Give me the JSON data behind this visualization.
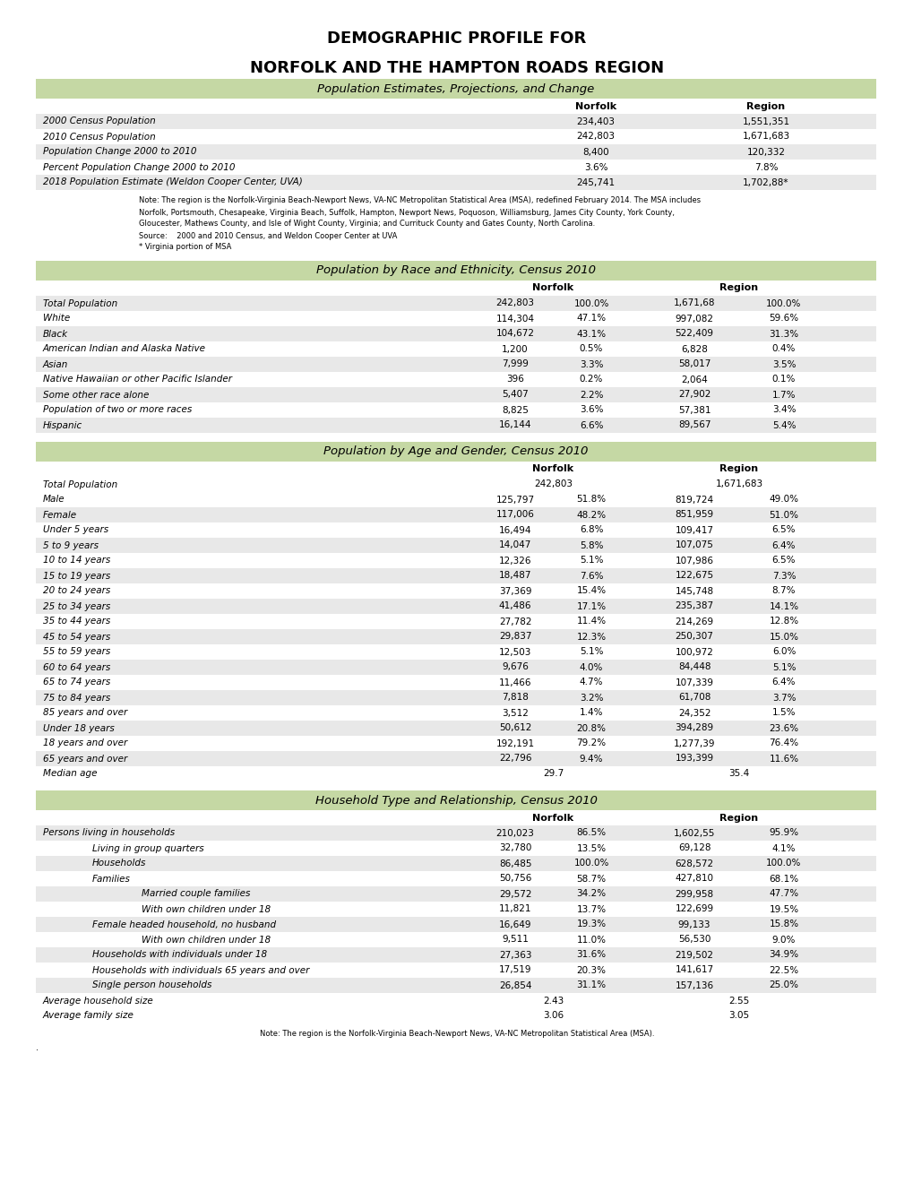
{
  "title_line1": "DEMOGRAPHIC PROFILE FOR",
  "title_line2": "NORFOLK AND THE HAMPTON ROADS REGION",
  "header_color": "#c5d8a4",
  "alt_row_color": "#e8e8e8",
  "white_row_color": "#ffffff",
  "bg_color": "#ffffff",
  "section1_title": "Population Estimates, Projections, and Change",
  "section1_rows": [
    [
      "2000 Census Population",
      "234,403",
      "1,551,351"
    ],
    [
      "2010 Census Population",
      "242,803",
      "1,671,683"
    ],
    [
      "Population Change 2000 to 2010",
      "8,400",
      "120,332"
    ],
    [
      "Percent Population Change 2000 to 2010",
      "3.6%",
      "7.8%"
    ],
    [
      "2018 Population Estimate (Weldon Cooper Center, UVA)",
      "245,741",
      "1,702,88*"
    ]
  ],
  "section1_note_lines": [
    "Note: The region is the Norfolk-Virginia Beach-Newport News, VA-NC Metropolitan Statistical Area (MSA), redefined February 2014. The MSA includes",
    "Norfolk, Portsmouth, Chesapeake, Virginia Beach, Suffolk, Hampton, Newport News, Poquoson, Williamsburg, James City County, York County,",
    "Gloucester, Mathews County, and Isle of Wight County, Virginia; and Currituck County and Gates County, North Carolina.",
    "Source:    2000 and 2010 Census, and Weldon Cooper Center at UVA",
    "* Virginia portion of MSA"
  ],
  "section2_title": "Population by Race and Ethnicity, Census 2010",
  "section2_rows": [
    [
      "Total Population",
      "242,803",
      "100.0%",
      "1,671,68",
      "100.0%"
    ],
    [
      "White",
      "114,304",
      "47.1%",
      "997,082",
      "59.6%"
    ],
    [
      "Black",
      "104,672",
      "43.1%",
      "522,409",
      "31.3%"
    ],
    [
      "American Indian and Alaska Native",
      "1,200",
      "0.5%",
      "6,828",
      "0.4%"
    ],
    [
      "Asian",
      "7,999",
      "3.3%",
      "58,017",
      "3.5%"
    ],
    [
      "Native Hawaiian or other Pacific Islander",
      "396",
      "0.2%",
      "2,064",
      "0.1%"
    ],
    [
      "Some other race alone",
      "5,407",
      "2.2%",
      "27,902",
      "1.7%"
    ],
    [
      "Population of two or more races",
      "8,825",
      "3.6%",
      "57,381",
      "3.4%"
    ],
    [
      "Hispanic",
      "16,144",
      "6.6%",
      "89,567",
      "5.4%"
    ]
  ],
  "section3_title": "Population by Age and Gender, Census 2010",
  "section3_rows": [
    [
      "Total Population",
      "242,803",
      "",
      "1,671,683",
      "",
      true
    ],
    [
      "Male",
      "125,797",
      "51.8%",
      "819,724",
      "49.0%",
      false
    ],
    [
      "Female",
      "117,006",
      "48.2%",
      "851,959",
      "51.0%",
      false
    ],
    [
      "Under 5 years",
      "16,494",
      "6.8%",
      "109,417",
      "6.5%",
      false
    ],
    [
      "5 to 9 years",
      "14,047",
      "5.8%",
      "107,075",
      "6.4%",
      false
    ],
    [
      "10 to 14 years",
      "12,326",
      "5.1%",
      "107,986",
      "6.5%",
      false
    ],
    [
      "15 to 19 years",
      "18,487",
      "7.6%",
      "122,675",
      "7.3%",
      false
    ],
    [
      "20 to 24 years",
      "37,369",
      "15.4%",
      "145,748",
      "8.7%",
      false
    ],
    [
      "25 to 34 years",
      "41,486",
      "17.1%",
      "235,387",
      "14.1%",
      false
    ],
    [
      "35 to 44 years",
      "27,782",
      "11.4%",
      "214,269",
      "12.8%",
      false
    ],
    [
      "45 to 54 years",
      "29,837",
      "12.3%",
      "250,307",
      "15.0%",
      false
    ],
    [
      "55 to 59 years",
      "12,503",
      "5.1%",
      "100,972",
      "6.0%",
      false
    ],
    [
      "60 to 64 years",
      "9,676",
      "4.0%",
      "84,448",
      "5.1%",
      false
    ],
    [
      "65 to 74 years",
      "11,466",
      "4.7%",
      "107,339",
      "6.4%",
      false
    ],
    [
      "75 to 84 years",
      "7,818",
      "3.2%",
      "61,708",
      "3.7%",
      false
    ],
    [
      "85 years and over",
      "3,512",
      "1.4%",
      "24,352",
      "1.5%",
      false
    ],
    [
      "Under 18 years",
      "50,612",
      "20.8%",
      "394,289",
      "23.6%",
      false
    ],
    [
      "18 years and over",
      "192,191",
      "79.2%",
      "1,277,39",
      "76.4%",
      false
    ],
    [
      "65 years and over",
      "22,796",
      "9.4%",
      "193,399",
      "11.6%",
      false
    ],
    [
      "Median age",
      "29.7",
      "",
      "35.4",
      "",
      true
    ]
  ],
  "section4_title": "Household Type and Relationship, Census 2010",
  "section4_rows": [
    [
      "Persons living in households",
      "210,023",
      "86.5%",
      "1,602,55",
      "95.9%",
      0
    ],
    [
      "Living in group quarters",
      "32,780",
      "13.5%",
      "69,128",
      "4.1%",
      1
    ],
    [
      "Households",
      "86,485",
      "100.0%",
      "628,572",
      "100.0%",
      1
    ],
    [
      "Families",
      "50,756",
      "58.7%",
      "427,810",
      "68.1%",
      1
    ],
    [
      "Married couple families",
      "29,572",
      "34.2%",
      "299,958",
      "47.7%",
      2
    ],
    [
      "With own children under 18",
      "11,821",
      "13.7%",
      "122,699",
      "19.5%",
      2
    ],
    [
      "Female headed household, no husband",
      "16,649",
      "19.3%",
      "99,133",
      "15.8%",
      1
    ],
    [
      "With own children under 18",
      "9,511",
      "11.0%",
      "56,530",
      "9.0%",
      2
    ],
    [
      "Households with individuals under 18",
      "27,363",
      "31.6%",
      "219,502",
      "34.9%",
      1
    ],
    [
      "Households with individuals 65 years and over",
      "17,519",
      "20.3%",
      "141,617",
      "22.5%",
      1
    ],
    [
      "Single person households",
      "26,854",
      "31.1%",
      "157,136",
      "25.0%",
      1
    ],
    [
      "Average household size",
      "2.43",
      "",
      "2.55",
      "",
      -1
    ],
    [
      "Average family size",
      "3.06",
      "",
      "3.05",
      "",
      -1
    ]
  ],
  "section4_note": "Note: The region is the Norfolk-Virginia Beach-Newport News, VA-NC Metropolitan Statistical Area (MSA).",
  "footer_note": "."
}
